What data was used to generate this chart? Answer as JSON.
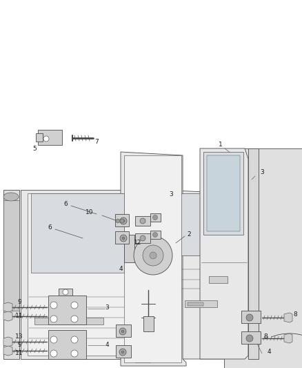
{
  "bg_color": "#ffffff",
  "line_color": "#4a4a4a",
  "text_color": "#1a1a1a",
  "fill_light": "#e8e8e8",
  "fill_mid": "#d0d0d0",
  "fill_dark": "#b0b0b0",
  "fig_width": 4.38,
  "fig_height": 5.33,
  "dpi": 100,
  "font_size": 6.5,
  "lw": 0.6
}
